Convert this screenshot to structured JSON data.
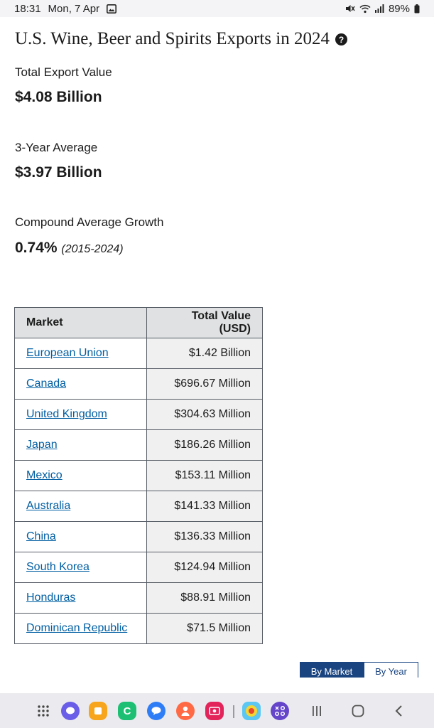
{
  "status_bar": {
    "time": "18:31",
    "date": "Mon, 7 Apr",
    "battery": "89%",
    "icons": [
      "gallery-icon",
      "mute-icon",
      "wifi-icon",
      "signal-icon",
      "battery-icon"
    ]
  },
  "page": {
    "title": "U.S. Wine, Beer and Spirits Exports in 2024",
    "help_icon": "question-circle-icon"
  },
  "metrics": {
    "total_label": "Total Export Value",
    "total_value": "$4.08 Billion",
    "avg_label": "3-Year Average",
    "avg_value": "$3.97 Billion",
    "growth_label": "Compound Average Growth",
    "growth_value": "0.74%",
    "growth_period": "(2015-2024)"
  },
  "table": {
    "headers": [
      "Market",
      "Total Value (USD)"
    ],
    "rows": [
      {
        "market": "European Union",
        "value": "$1.42 Billion"
      },
      {
        "market": "Canada",
        "value": "$696.67 Million"
      },
      {
        "market": "United Kingdom",
        "value": "$304.63 Million"
      },
      {
        "market": "Japan",
        "value": "$186.26 Million"
      },
      {
        "market": "Mexico",
        "value": "$153.11 Million"
      },
      {
        "market": "Australia",
        "value": "$141.33 Million"
      },
      {
        "market": "China",
        "value": "$136.33 Million"
      },
      {
        "market": "South Korea",
        "value": "$124.94 Million"
      },
      {
        "market": "Honduras",
        "value": "$88.91 Million"
      },
      {
        "market": "Dominican Republic",
        "value": "$71.5 Million"
      }
    ]
  },
  "toggle": {
    "by_market": "By Market",
    "by_year": "By Year"
  },
  "nav_bar": {
    "apps": [
      "app-drawer-icon",
      "messages-icon",
      "notes-icon",
      "phone-call-icon",
      "chat-icon",
      "people-icon",
      "screen-recorder-icon",
      "game-icon",
      "galaxy-store-icon"
    ],
    "buttons": [
      "recent-apps-icon",
      "home-icon",
      "back-icon"
    ],
    "colors": {
      "accent": "#005ea2",
      "toggle": "#1a4480"
    }
  }
}
